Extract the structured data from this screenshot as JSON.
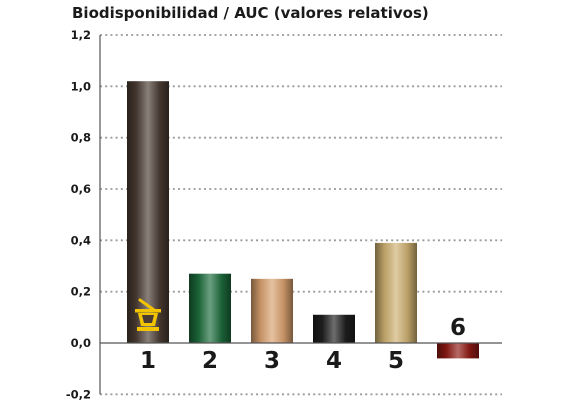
{
  "chart_data": {
    "type": "bar",
    "title": "",
    "ylabel": "Biodisponibilidad / AUC (valores relativos)",
    "xlabel": "",
    "categories": [
      "1",
      "2",
      "3",
      "4",
      "5",
      "6"
    ],
    "values": [
      1.02,
      0.27,
      0.25,
      0.11,
      0.39,
      -0.06
    ],
    "ylim": [
      -0.2,
      1.2
    ],
    "yticks": [
      -0.2,
      0.0,
      0.2,
      0.4,
      0.6,
      0.8,
      1.0,
      1.2
    ],
    "ytick_labels": [
      "-0,2",
      "0,0",
      "0,2",
      "0,4",
      "0,6",
      "0,8",
      "1,0",
      "1,2"
    ],
    "grid": "dotted-horizontal",
    "bar_colors": [
      "#4a3c33",
      "#1c6b3b",
      "#d9a06f",
      "#1f1f1f",
      "#cdb070",
      "#8e1a14"
    ],
    "bar_icons": [
      "mortar-pestle-icon",
      "",
      "",
      "",
      "",
      ""
    ],
    "icon_color": "#f3c400"
  }
}
